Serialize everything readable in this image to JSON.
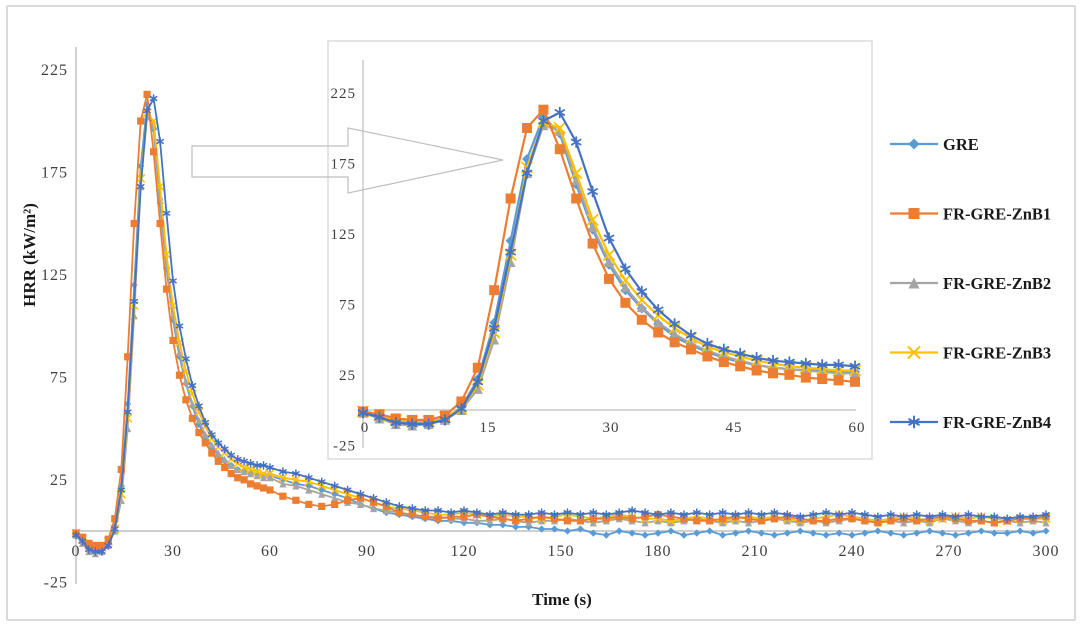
{
  "chart_data": {
    "type": "line",
    "title": "",
    "xlabel": "Time (s)",
    "ylabel": "HRR (kW/m²)",
    "x": [
      0,
      2,
      4,
      6,
      8,
      10,
      12,
      14,
      16,
      18,
      20,
      22,
      24,
      26,
      28,
      30,
      32,
      34,
      36,
      38,
      40,
      42,
      44,
      46,
      48,
      50,
      52,
      54,
      56,
      58,
      60,
      64,
      68,
      72,
      76,
      80,
      84,
      88,
      92,
      96,
      100,
      104,
      108,
      112,
      116,
      120,
      124,
      128,
      132,
      136,
      140,
      144,
      148,
      152,
      156,
      160,
      164,
      168,
      172,
      176,
      180,
      184,
      188,
      192,
      196,
      200,
      204,
      208,
      212,
      216,
      220,
      224,
      228,
      232,
      236,
      240,
      244,
      248,
      252,
      256,
      260,
      264,
      268,
      272,
      276,
      280,
      284,
      288,
      292,
      296,
      300
    ],
    "series": [
      {
        "name": "GRE",
        "color": "#5B9BD5",
        "marker": "diamond",
        "values": [
          -2,
          -5,
          -8,
          -9,
          -9,
          -6,
          2,
          22,
          62,
          120,
          178,
          208,
          196,
          160,
          128,
          103,
          85,
          72,
          61,
          52,
          46,
          41,
          37,
          34,
          32,
          30,
          29,
          28,
          28,
          27,
          27,
          25,
          23,
          22,
          20,
          18,
          16,
          13,
          11,
          9,
          8,
          7,
          6,
          5,
          5,
          4,
          4,
          3,
          3,
          2,
          2,
          1,
          1,
          0,
          1,
          -1,
          -2,
          0,
          -1,
          -2,
          -1,
          0,
          -2,
          -1,
          0,
          -2,
          -1,
          0,
          -1,
          -2,
          -1,
          0,
          -1,
          -2,
          -1,
          -2,
          -1,
          0,
          -1,
          -2,
          -1,
          0,
          -1,
          -2,
          -1,
          0,
          -1,
          -1,
          0,
          -1,
          0
        ]
      },
      {
        "name": "FR-GRE-ZnB1",
        "color": "#ED7D31",
        "marker": "square",
        "values": [
          -1,
          -3,
          -6,
          -7,
          -7,
          -4,
          6,
          30,
          85,
          150,
          200,
          213,
          185,
          150,
          118,
          93,
          76,
          64,
          55,
          48,
          43,
          38,
          34,
          31,
          28,
          26,
          25,
          23,
          22,
          21,
          20,
          17,
          15,
          13,
          12,
          13,
          15,
          16,
          14,
          12,
          9,
          8,
          7,
          6,
          7,
          7,
          8,
          7,
          6,
          5,
          6,
          7,
          6,
          5,
          5,
          6,
          6,
          7,
          6,
          7,
          8,
          7,
          6,
          5,
          5,
          6,
          7,
          6,
          5,
          6,
          7,
          6,
          5,
          5,
          6,
          6,
          5,
          4,
          5,
          6,
          5,
          6,
          7,
          6,
          5,
          5,
          4,
          5,
          6,
          6,
          7
        ]
      },
      {
        "name": "FR-GRE-ZnB2",
        "color": "#A5A5A5",
        "marker": "triangle",
        "values": [
          -2,
          -6,
          -10,
          -11,
          -10,
          -7,
          0,
          15,
          50,
          105,
          168,
          202,
          198,
          163,
          130,
          105,
          87,
          73,
          62,
          54,
          47,
          42,
          38,
          35,
          32,
          30,
          29,
          28,
          27,
          26,
          26,
          23,
          22,
          20,
          18,
          16,
          14,
          13,
          11,
          10,
          9,
          8,
          7,
          7,
          6,
          6,
          5,
          5,
          6,
          5,
          4,
          5,
          5,
          6,
          5,
          4,
          5,
          6,
          5,
          4,
          5,
          4,
          5,
          6,
          5,
          4,
          5,
          4,
          5,
          6,
          5,
          4,
          5,
          4,
          5,
          6,
          5,
          4,
          5,
          4,
          5,
          4,
          6,
          5,
          4,
          5,
          4,
          5,
          4,
          5,
          4
        ]
      },
      {
        "name": "FR-GRE-ZnB3",
        "color": "#FFC000",
        "marker": "x",
        "values": [
          -1,
          -4,
          -7,
          -8,
          -8,
          -5,
          1,
          18,
          55,
          110,
          172,
          204,
          200,
          168,
          135,
          110,
          92,
          78,
          67,
          58,
          51,
          45,
          41,
          38,
          35,
          33,
          31,
          30,
          29,
          28,
          28,
          26,
          25,
          24,
          22,
          20,
          18,
          16,
          14,
          12,
          11,
          10,
          9,
          8,
          8,
          9,
          8,
          7,
          8,
          7,
          7,
          6,
          7,
          8,
          7,
          6,
          7,
          8,
          7,
          6,
          6,
          5,
          6,
          7,
          6,
          5,
          6,
          7,
          6,
          7,
          6,
          5,
          6,
          7,
          8,
          7,
          6,
          5,
          6,
          7,
          6,
          5,
          6,
          7,
          6,
          7,
          6,
          5,
          6,
          6,
          6
        ]
      },
      {
        "name": "FR-GRE-ZnB4",
        "color": "#4472C4",
        "marker": "asterisk",
        "values": [
          -2,
          -5,
          -9,
          -10,
          -10,
          -7,
          1,
          20,
          58,
          112,
          168,
          205,
          211,
          190,
          155,
          122,
          100,
          84,
          71,
          61,
          53,
          47,
          43,
          40,
          37,
          35,
          34,
          33,
          32,
          32,
          31,
          29,
          28,
          26,
          24,
          22,
          20,
          18,
          16,
          14,
          12,
          11,
          10,
          10,
          9,
          10,
          9,
          8,
          9,
          8,
          8,
          9,
          8,
          9,
          8,
          9,
          8,
          9,
          10,
          9,
          8,
          9,
          8,
          9,
          8,
          9,
          8,
          9,
          8,
          9,
          8,
          7,
          8,
          9,
          8,
          9,
          8,
          7,
          8,
          7,
          8,
          7,
          8,
          7,
          8,
          7,
          7,
          6,
          7,
          7,
          8
        ]
      }
    ],
    "main_axis": {
      "xlim": [
        0,
        300
      ],
      "xticks": [
        0,
        30,
        60,
        90,
        120,
        150,
        180,
        210,
        240,
        270,
        300
      ],
      "ylim": [
        -25,
        240
      ],
      "yticks": [
        225,
        175,
        125,
        75,
        25,
        -25
      ],
      "grid": false
    },
    "inset_axis": {
      "xlim": [
        0,
        60
      ],
      "xticks": [
        0,
        15,
        30,
        45,
        60
      ],
      "ylim": [
        -25,
        240
      ],
      "yticks": [
        225,
        175,
        125,
        75,
        25,
        -25
      ],
      "grid": false
    },
    "legend": {
      "position": "right",
      "labels": [
        "GRE",
        "FR-GRE-ZnB1",
        "FR-GRE-ZnB2",
        "FR-GRE-ZnB3",
        "FR-GRE-ZnB4"
      ]
    }
  },
  "style_colors": {
    "axis_line": "#BFBFBF",
    "tick_text": "#404040",
    "legend_text": "#1a1a1a",
    "inset_border": "#D9D9D9",
    "callout_outline": "#BFBFBF",
    "figure_border": "#D9D9D9"
  }
}
